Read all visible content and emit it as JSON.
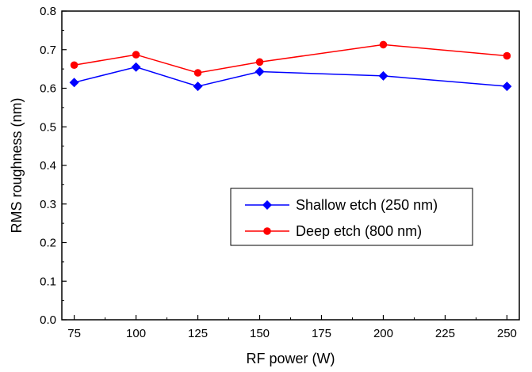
{
  "chart_data": {
    "type": "line",
    "xlabel": "RF power (W)",
    "ylabel": "RMS roughness (nm)",
    "xlim": [
      70,
      255
    ],
    "ylim": [
      0.0,
      0.8
    ],
    "xticks": [
      75,
      100,
      125,
      150,
      175,
      200,
      225,
      250
    ],
    "yticks": [
      0.0,
      0.1,
      0.2,
      0.3,
      0.4,
      0.5,
      0.6,
      0.7,
      0.8
    ],
    "ytick_labels": [
      "0.0",
      "0.1",
      "0.2",
      "0.3",
      "0.4",
      "0.5",
      "0.6",
      "0.7",
      "0.8"
    ],
    "grid": false,
    "legend_position": "lower-right",
    "series": [
      {
        "name": "Shallow etch (250 nm)",
        "color": "#0000ff",
        "marker": "diamond",
        "x": [
          75,
          100,
          125,
          150,
          200,
          250
        ],
        "y": [
          0.615,
          0.655,
          0.605,
          0.643,
          0.632,
          0.605
        ]
      },
      {
        "name": "Deep etch (800 nm)",
        "color": "#ff0000",
        "marker": "circle",
        "x": [
          75,
          100,
          125,
          150,
          200,
          250
        ],
        "y": [
          0.66,
          0.687,
          0.64,
          0.668,
          0.713,
          0.684
        ]
      }
    ]
  }
}
